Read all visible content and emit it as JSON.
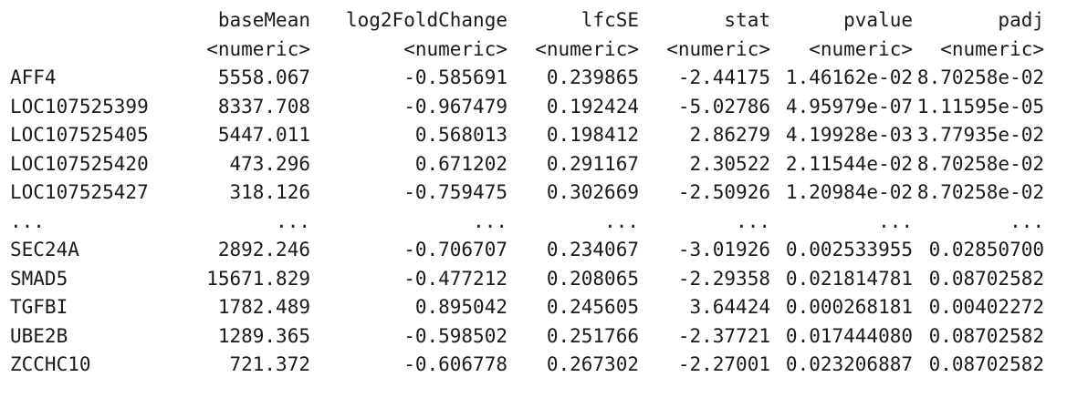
{
  "columns": [
    "baseMean",
    "log2FoldChange",
    "lfcSE",
    "stat",
    "pvalue",
    "padj"
  ],
  "types": [
    "<numeric>",
    "<numeric>",
    "<numeric>",
    "<numeric>",
    "<numeric>",
    "<numeric>"
  ],
  "rows": [
    {
      "name": "AFF4",
      "values": [
        "5558.067",
        "-0.585691",
        "0.239865",
        "-2.44175",
        "1.46162e-02",
        "8.70258e-02"
      ]
    },
    {
      "name": "LOC107525399",
      "values": [
        "8337.708",
        "-0.967479",
        "0.192424",
        "-5.02786",
        "4.95979e-07",
        "1.11595e-05"
      ]
    },
    {
      "name": "LOC107525405",
      "values": [
        "5447.011",
        "0.568013",
        "0.198412",
        "2.86279",
        "4.19928e-03",
        "3.77935e-02"
      ]
    },
    {
      "name": "LOC107525420",
      "values": [
        "473.296",
        "0.671202",
        "0.291167",
        "2.30522",
        "2.11544e-02",
        "8.70258e-02"
      ]
    },
    {
      "name": "LOC107525427",
      "values": [
        "318.126",
        "-0.759475",
        "0.302669",
        "-2.50926",
        "1.20984e-02",
        "8.70258e-02"
      ]
    },
    {
      "name": "...",
      "values": [
        "...",
        "...",
        "...",
        "...",
        "...",
        "..."
      ]
    },
    {
      "name": "SEC24A",
      "values": [
        "2892.246",
        "-0.706707",
        "0.234067",
        "-3.01926",
        "0.002533955",
        "0.02850700"
      ]
    },
    {
      "name": "SMAD5",
      "values": [
        "15671.829",
        "-0.477212",
        "0.208065",
        "-2.29358",
        "0.021814781",
        "0.08702582"
      ]
    },
    {
      "name": "TGFBI",
      "values": [
        "1782.489",
        "0.895042",
        "0.245605",
        "3.64424",
        "0.000268181",
        "0.00402272"
      ]
    },
    {
      "name": "UBE2B",
      "values": [
        "1289.365",
        "-0.598502",
        "0.251766",
        "-2.37721",
        "0.017444080",
        "0.08702582"
      ]
    },
    {
      "name": "ZCCHC10",
      "values": [
        "721.372",
        "-0.606778",
        "0.267302",
        "-2.27001",
        "0.023206887",
        "0.08702582"
      ]
    }
  ]
}
